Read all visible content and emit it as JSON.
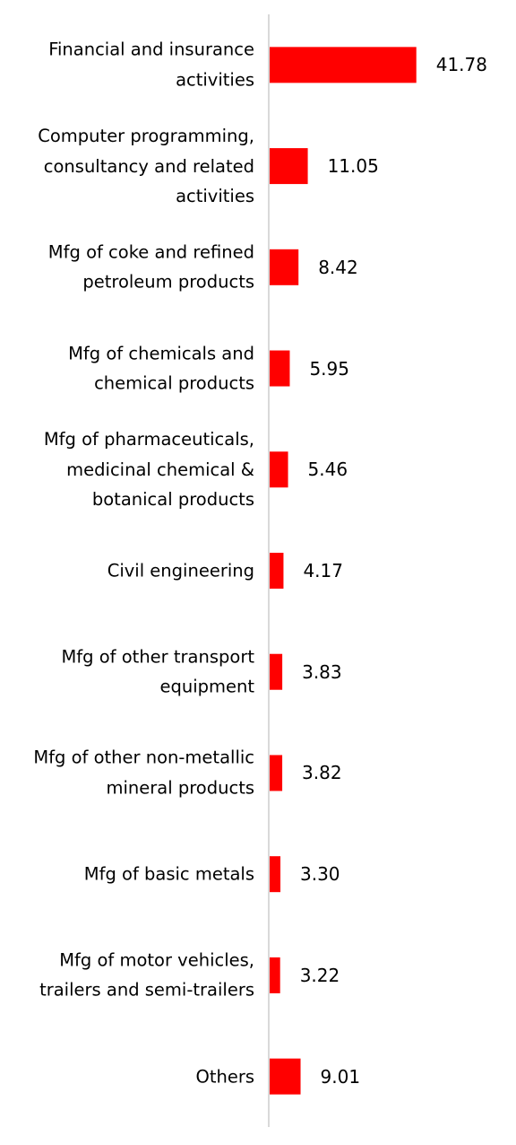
{
  "chart_data": {
    "type": "bar",
    "orientation": "horizontal",
    "categories": [
      "Financial and insurance\nactivities",
      "Computer programming,\nconsultancy and related\nactivities",
      "Mfg of coke and refined\npetroleum products",
      "Mfg of chemicals and\nchemical products",
      "Mfg of pharmaceuticals,\nmedicinal chemical &\nbotanical products",
      "Civil engineering",
      "Mfg of other transport\nequipment",
      "Mfg of other non-metallic\nmineral products",
      "Mfg of basic metals",
      "Mfg of motor vehicles,\ntrailers and semi-trailers",
      "Others"
    ],
    "values": [
      41.78,
      11.05,
      8.42,
      5.95,
      5.46,
      4.17,
      3.83,
      3.82,
      3.3,
      3.22,
      9.01
    ],
    "value_labels": [
      "41.78",
      "11.05",
      "8.42",
      "5.95",
      "5.46",
      "4.17",
      "3.83",
      "3.82",
      "3.30",
      "3.22",
      "9.01"
    ],
    "xlim": [
      0,
      70
    ],
    "grid": false,
    "legend": "none",
    "title": "",
    "xlabel": "",
    "ylabel": "",
    "colors": {
      "bar": "#ff0000",
      "axis": "#d9d9d9"
    }
  }
}
